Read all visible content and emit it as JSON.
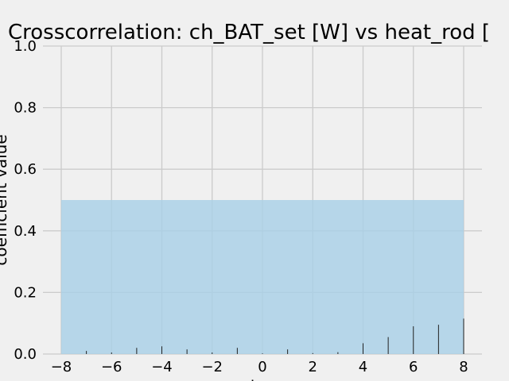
{
  "chart_data": {
    "type": "bar",
    "title": "Crosscorrelation: ch_BAT_set [W] vs heat_rod [",
    "xlabel": "lag",
    "ylabel": "coefficient value",
    "xlim": [
      -8,
      8
    ],
    "ylim": [
      0,
      1
    ],
    "xticks": [
      "−8",
      "−6",
      "−4",
      "−2",
      "0",
      "2",
      "4",
      "6",
      "8"
    ],
    "yticks": [
      "0.0",
      "0.2",
      "0.4",
      "0.6",
      "0.8",
      "1.0"
    ],
    "grid": true,
    "confidence_band": [
      0,
      0.5
    ],
    "x": [
      -8,
      -7,
      -6,
      -5,
      -4,
      -3,
      -2,
      -1,
      0,
      1,
      2,
      3,
      4,
      5,
      6,
      7,
      8
    ],
    "values": [
      0.0,
      0.01,
      0.005,
      0.02,
      0.025,
      0.015,
      0.005,
      0.02,
      0.002,
      0.015,
      0.003,
      0.006,
      0.035,
      0.055,
      0.09,
      0.095,
      0.115
    ],
    "colors": {
      "background": "#f0f0f0",
      "grid": "#cbcbcb",
      "band": "#a7cfe7",
      "bar": "#222222"
    }
  }
}
